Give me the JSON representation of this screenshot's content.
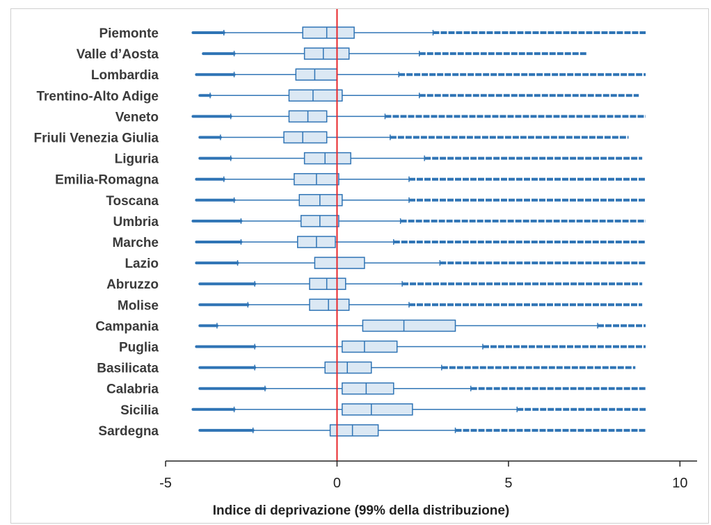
{
  "chart_data": {
    "type": "boxplot",
    "orientation": "horizontal",
    "xlabel": "Indice di deprivazione (99% della distribuzione)",
    "xlim": [
      -5,
      10.5
    ],
    "xticks": [
      -5,
      0,
      5,
      10
    ],
    "xtick_labels": [
      "-5",
      "0",
      "5",
      "10"
    ],
    "reference_line": {
      "x": 0,
      "color": "#e8262b"
    },
    "colors": {
      "box_fill": "#dbe8f4",
      "box_stroke": "#2f74b5",
      "points": "#2f74b5"
    },
    "categories": [
      "Piemonte",
      "Valle d’Aosta",
      "Lombardia",
      "Trentino-Alto Adige",
      "Veneto",
      "Friuli Venezia Giulia",
      "Liguria",
      "Emilia-Romagna",
      "Toscana",
      "Umbria",
      "Marche",
      "Lazio",
      "Abruzzo",
      "Molise",
      "Campania",
      "Puglia",
      "Basilicata",
      "Calabria",
      "Sicilia",
      "Sardegna"
    ],
    "boxes": [
      {
        "region": "Piemonte",
        "min": -4.2,
        "whisker_low": -3.3,
        "q1": -1.0,
        "median": -0.3,
        "q3": 0.5,
        "whisker_high": 2.8,
        "max": 9.0
      },
      {
        "region": "Valle d’Aosta",
        "min": -3.9,
        "whisker_low": -3.0,
        "q1": -0.95,
        "median": -0.4,
        "q3": 0.35,
        "whisker_high": 2.4,
        "max": 7.3
      },
      {
        "region": "Lombardia",
        "min": -4.1,
        "whisker_low": -3.0,
        "q1": -1.2,
        "median": -0.65,
        "q3": 0.0,
        "whisker_high": 1.8,
        "max": 9.0
      },
      {
        "region": "Trentino-Alto Adige",
        "min": -4.0,
        "whisker_low": -3.7,
        "q1": -1.4,
        "median": -0.7,
        "q3": 0.15,
        "whisker_high": 2.4,
        "max": 8.8
      },
      {
        "region": "Veneto",
        "min": -4.2,
        "whisker_low": -3.1,
        "q1": -1.4,
        "median": -0.85,
        "q3": -0.3,
        "whisker_high": 1.4,
        "max": 9.0
      },
      {
        "region": "Friuli Venezia Giulia",
        "min": -4.0,
        "whisker_low": -3.4,
        "q1": -1.55,
        "median": -1.0,
        "q3": -0.3,
        "whisker_high": 1.55,
        "max": 8.5
      },
      {
        "region": "Liguria",
        "min": -4.0,
        "whisker_low": -3.1,
        "q1": -0.95,
        "median": -0.35,
        "q3": 0.4,
        "whisker_high": 2.55,
        "max": 8.9
      },
      {
        "region": "Emilia-Romagna",
        "min": -4.1,
        "whisker_low": -3.3,
        "q1": -1.25,
        "median": -0.6,
        "q3": 0.05,
        "whisker_high": 2.1,
        "max": 9.0
      },
      {
        "region": "Toscana",
        "min": -4.1,
        "whisker_low": -3.0,
        "q1": -1.1,
        "median": -0.5,
        "q3": 0.15,
        "whisker_high": 2.1,
        "max": 9.0
      },
      {
        "region": "Umbria",
        "min": -4.2,
        "whisker_low": -2.8,
        "q1": -1.05,
        "median": -0.5,
        "q3": 0.05,
        "whisker_high": 1.85,
        "max": 9.0
      },
      {
        "region": "Marche",
        "min": -4.1,
        "whisker_low": -2.8,
        "q1": -1.15,
        "median": -0.6,
        "q3": -0.05,
        "whisker_high": 1.65,
        "max": 9.0
      },
      {
        "region": "Lazio",
        "min": -4.1,
        "whisker_low": -2.9,
        "q1": -0.65,
        "median": 0.0,
        "q3": 0.8,
        "whisker_high": 3.0,
        "max": 9.0
      },
      {
        "region": "Abruzzo",
        "min": -4.0,
        "whisker_low": -2.4,
        "q1": -0.8,
        "median": -0.3,
        "q3": 0.25,
        "whisker_high": 1.9,
        "max": 8.9
      },
      {
        "region": "Molise",
        "min": -4.0,
        "whisker_low": -2.6,
        "q1": -0.8,
        "median": -0.25,
        "q3": 0.35,
        "whisker_high": 2.1,
        "max": 8.9
      },
      {
        "region": "Campania",
        "min": -4.0,
        "whisker_low": -3.5,
        "q1": 0.75,
        "median": 1.95,
        "q3": 3.45,
        "whisker_high": 7.6,
        "max": 9.0
      },
      {
        "region": "Puglia",
        "min": -4.1,
        "whisker_low": -2.4,
        "q1": 0.15,
        "median": 0.8,
        "q3": 1.75,
        "whisker_high": 4.25,
        "max": 9.0
      },
      {
        "region": "Basilicata",
        "min": -4.0,
        "whisker_low": -2.4,
        "q1": -0.35,
        "median": 0.3,
        "q3": 1.0,
        "whisker_high": 3.05,
        "max": 8.7
      },
      {
        "region": "Calabria",
        "min": -4.0,
        "whisker_low": -2.1,
        "q1": 0.15,
        "median": 0.85,
        "q3": 1.65,
        "whisker_high": 3.9,
        "max": 9.0
      },
      {
        "region": "Sicilia",
        "min": -4.2,
        "whisker_low": -3.0,
        "q1": 0.15,
        "median": 1.0,
        "q3": 2.2,
        "whisker_high": 5.25,
        "max": 9.0
      },
      {
        "region": "Sardegna",
        "min": -4.0,
        "whisker_low": -2.45,
        "q1": -0.2,
        "median": 0.45,
        "q3": 1.2,
        "whisker_high": 3.45,
        "max": 9.0
      }
    ]
  }
}
